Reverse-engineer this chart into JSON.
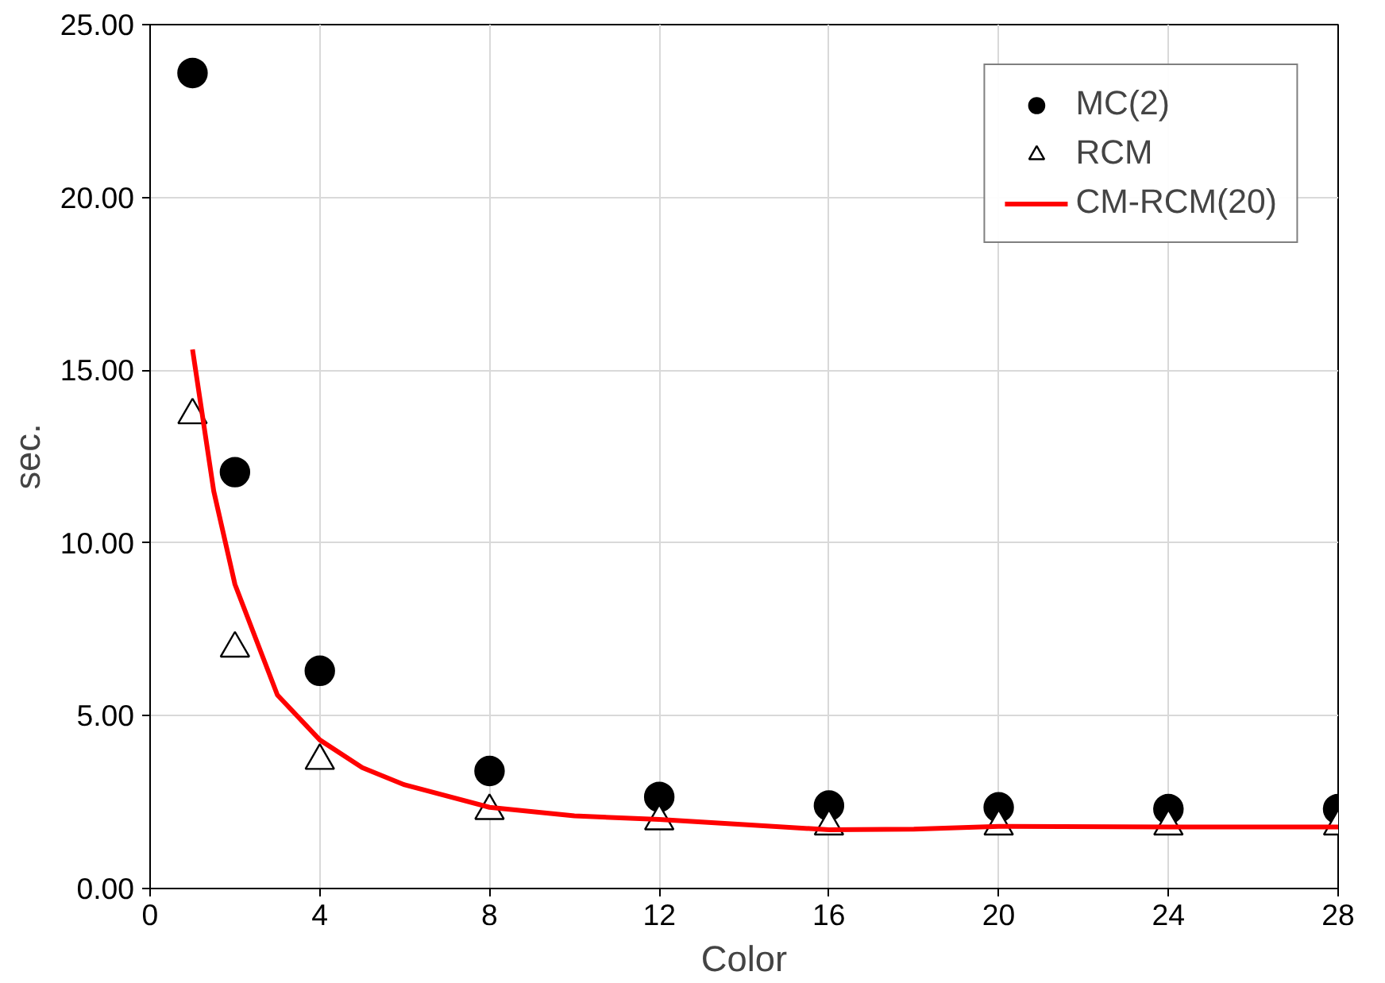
{
  "chart_data": {
    "type": "scatter",
    "xlabel": "Color",
    "ylabel": "sec.",
    "xlim": [
      0,
      28
    ],
    "xticks": [
      0,
      4,
      8,
      12,
      16,
      20,
      24,
      28
    ],
    "ylim": [
      0,
      25
    ],
    "yticks": [
      {
        "value": 0,
        "label": "0.00"
      },
      {
        "value": 5,
        "label": "5.00"
      },
      {
        "value": 10,
        "label": "10.00"
      },
      {
        "value": 15,
        "label": "15.00"
      },
      {
        "value": 20,
        "label": "20.00"
      },
      {
        "value": 25,
        "label": "25.00"
      }
    ],
    "grid": true,
    "legend": "top right",
    "series": [
      {
        "name": "MC(2)",
        "marker": "circle",
        "color": "#000000",
        "x": [
          1,
          2,
          4,
          8,
          12,
          16,
          20,
          24,
          28
        ],
        "values": [
          23.6,
          12.05,
          6.3,
          3.4,
          2.65,
          2.4,
          2.35,
          2.3,
          2.3
        ]
      },
      {
        "name": "RCM",
        "marker": "triangle",
        "color": "#ffffff",
        "x": [
          1,
          2,
          4,
          8,
          12,
          16,
          20,
          24,
          28
        ],
        "values": [
          13.7,
          6.95,
          3.7,
          2.25,
          1.95,
          1.8,
          1.8,
          1.8,
          1.8
        ]
      },
      {
        "name": "CM-RCM(20)",
        "type": "line",
        "marker": "none",
        "line_style": "solid",
        "color": "#ff0000",
        "x": [
          1,
          1.5,
          2,
          3,
          4,
          5,
          6,
          8,
          10,
          12,
          14,
          16,
          18,
          20,
          24,
          28
        ],
        "values": [
          15.6,
          11.5,
          8.8,
          5.6,
          4.3,
          3.5,
          3.0,
          2.35,
          2.1,
          2.0,
          1.85,
          1.7,
          1.72,
          1.8,
          1.78,
          1.78
        ]
      }
    ]
  }
}
